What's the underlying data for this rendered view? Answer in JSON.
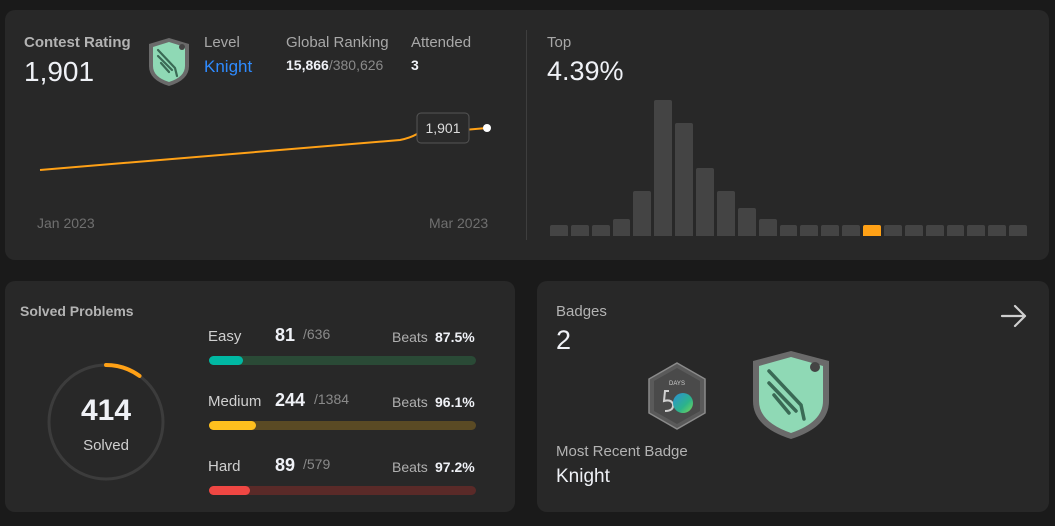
{
  "contest": {
    "rating_label": "Contest Rating",
    "rating_value": "1,901",
    "level_label": "Level",
    "level_value": "Knight",
    "ranking_label": "Global Ranking",
    "ranking_value": "15,866",
    "ranking_total": "/380,626",
    "attended_label": "Attended",
    "attended_value": "3",
    "tooltip_value": "1,901",
    "x_start_label": "Jan 2023",
    "x_end_label": "Mar 2023",
    "top_label": "Top",
    "top_value": "4.39%"
  },
  "colors": {
    "accent_orange": "#ffa116",
    "level_blue": "#2e8bff",
    "easy": "#00b8a3",
    "medium": "#ffc01e",
    "hard": "#ef4743"
  },
  "chart_data": [
    {
      "type": "line",
      "x": [
        "Jan 2023",
        "Mar 2023"
      ],
      "series": [
        {
          "values": [
            1810,
            1901
          ]
        }
      ]
    },
    {
      "type": "bar",
      "values": [
        2,
        2,
        2,
        3,
        8,
        24,
        20,
        12,
        8,
        5,
        3,
        2,
        2,
        2,
        2,
        2,
        2,
        2,
        2,
        2,
        2,
        2,
        2
      ],
      "highlight_index": 15
    }
  ],
  "solved": {
    "title": "Solved Problems",
    "total": "414",
    "total_label": "Solved",
    "progress": 0.1,
    "rows": [
      {
        "label": "Easy",
        "count": "81",
        "total": "/636",
        "beats_label": "Beats",
        "beats": "87.5%",
        "ratio": 0.127
      },
      {
        "label": "Medium",
        "count": "244",
        "total": "/1384",
        "beats_label": "Beats",
        "beats": "96.1%",
        "ratio": 0.176
      },
      {
        "label": "Hard",
        "count": "89",
        "total": "/579",
        "beats_label": "Beats",
        "beats": "97.2%",
        "ratio": 0.154
      }
    ]
  },
  "badges": {
    "title": "Badges",
    "count": "2",
    "recent_label": "Most Recent Badge",
    "recent_value": "Knight",
    "items": [
      {
        "icon": "days-50-badge-icon",
        "caption": "DAYS"
      },
      {
        "icon": "knight-badge-icon"
      }
    ]
  }
}
